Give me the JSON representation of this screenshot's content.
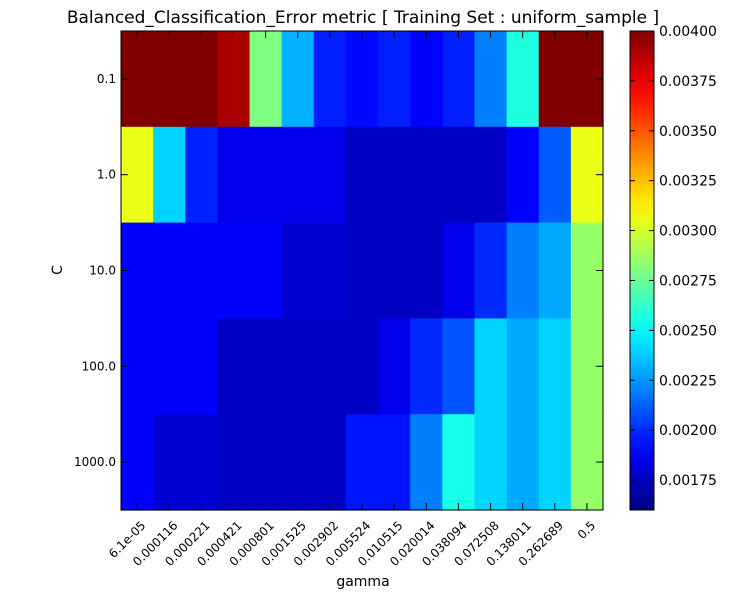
{
  "chart_data": {
    "type": "heatmap",
    "title": "Balanced_Classification_Error metric  [ Training Set : uniform_sample ]",
    "xlabel": "gamma",
    "ylabel": "C",
    "x_tick_labels": [
      "6.1e-05",
      "0.000116",
      "0.000221",
      "0.000421",
      "0.000801",
      "0.001525",
      "0.002902",
      "0.005524",
      "0.010515",
      "0.020014",
      "0.038094",
      "0.072508",
      "0.138011",
      "0.262689",
      "0.5"
    ],
    "y_tick_labels": [
      "0.1",
      "1.0",
      "10.0",
      "100.0",
      "1000.0"
    ],
    "values": [
      [
        0.004,
        0.004,
        0.004,
        0.0039,
        0.0028,
        0.00232,
        0.00197,
        0.00192,
        0.00197,
        0.0019,
        0.00197,
        0.0022,
        0.00257,
        0.004,
        0.004
      ],
      [
        0.00305,
        0.0024,
        0.00198,
        0.00185,
        0.00185,
        0.00185,
        0.00185,
        0.00176,
        0.00176,
        0.00176,
        0.00176,
        0.00176,
        0.0019,
        0.00212,
        0.00305
      ],
      [
        0.0019,
        0.0019,
        0.0019,
        0.0019,
        0.0019,
        0.0018,
        0.0018,
        0.00176,
        0.00176,
        0.00176,
        0.00185,
        0.002,
        0.0022,
        0.0023,
        0.00285
      ],
      [
        0.0019,
        0.0019,
        0.0019,
        0.00176,
        0.00176,
        0.00176,
        0.00176,
        0.00176,
        0.00185,
        0.002,
        0.0021,
        0.0024,
        0.0023,
        0.0024,
        0.00285
      ],
      [
        0.0019,
        0.0018,
        0.0018,
        0.00176,
        0.00176,
        0.00176,
        0.00176,
        0.00195,
        0.00195,
        0.0022,
        0.00255,
        0.0024,
        0.0023,
        0.0024,
        0.00285
      ]
    ],
    "colorbar": {
      "colormap": "jet",
      "range": [
        0.0016,
        0.004
      ],
      "tick_labels": [
        "0.00175",
        "0.00200",
        "0.00225",
        "0.00250",
        "0.00275",
        "0.00300",
        "0.00325",
        "0.00350",
        "0.00375",
        "0.00400"
      ]
    },
    "grid": false,
    "colors": {
      "frame": "#000000",
      "background": "#ffffff"
    }
  }
}
